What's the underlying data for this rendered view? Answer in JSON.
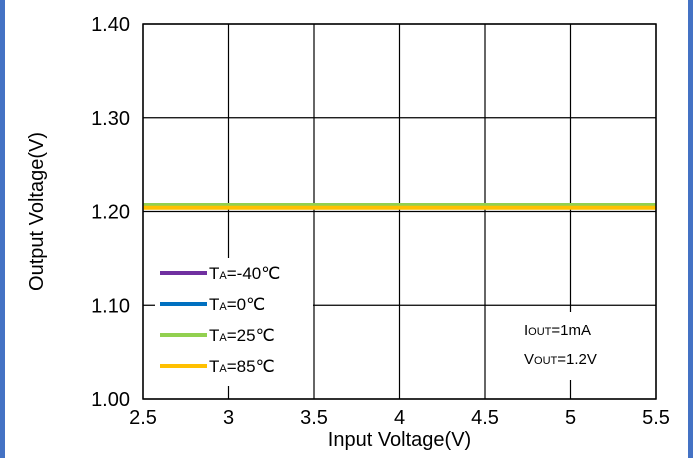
{
  "chart_data": {
    "type": "line",
    "title": "",
    "xlabel": "Input Voltage(V)",
    "ylabel": "Output Voltage(V)",
    "xlim": [
      2.5,
      5.5
    ],
    "ylim": [
      1.0,
      1.4
    ],
    "x_ticks": [
      "2.5",
      "3",
      "3.5",
      "4",
      "4.5",
      "5",
      "5.5"
    ],
    "y_ticks": [
      "1.00",
      "1.10",
      "1.20",
      "1.30",
      "1.40"
    ],
    "grid": true,
    "legend_position": "bottom-left",
    "series": [
      {
        "name_main": "T",
        "name_sub": "A",
        "name_rest": "=-40℃",
        "color": "#7030a0",
        "x": [
          2.5,
          5.5
        ],
        "y": [
          1.207,
          1.207
        ]
      },
      {
        "name_main": "T",
        "name_sub": "A",
        "name_rest": "=0℃",
        "color": "#0070c0",
        "x": [
          2.5,
          5.5
        ],
        "y": [
          1.207,
          1.207
        ]
      },
      {
        "name_main": "T",
        "name_sub": "A",
        "name_rest": "=25℃",
        "color": "#92d050",
        "x": [
          2.5,
          5.5
        ],
        "y": [
          1.207,
          1.207
        ]
      },
      {
        "name_main": "T",
        "name_sub": "A",
        "name_rest": "=85℃",
        "color": "#ffc000",
        "x": [
          2.5,
          5.5
        ],
        "y": [
          1.204,
          1.204
        ]
      }
    ],
    "annotations": [
      {
        "prefix": "I",
        "sub": "OUT",
        "rest": "=1mA"
      },
      {
        "prefix": "V",
        "sub": "OUT",
        "rest": "=1.2V"
      }
    ]
  }
}
